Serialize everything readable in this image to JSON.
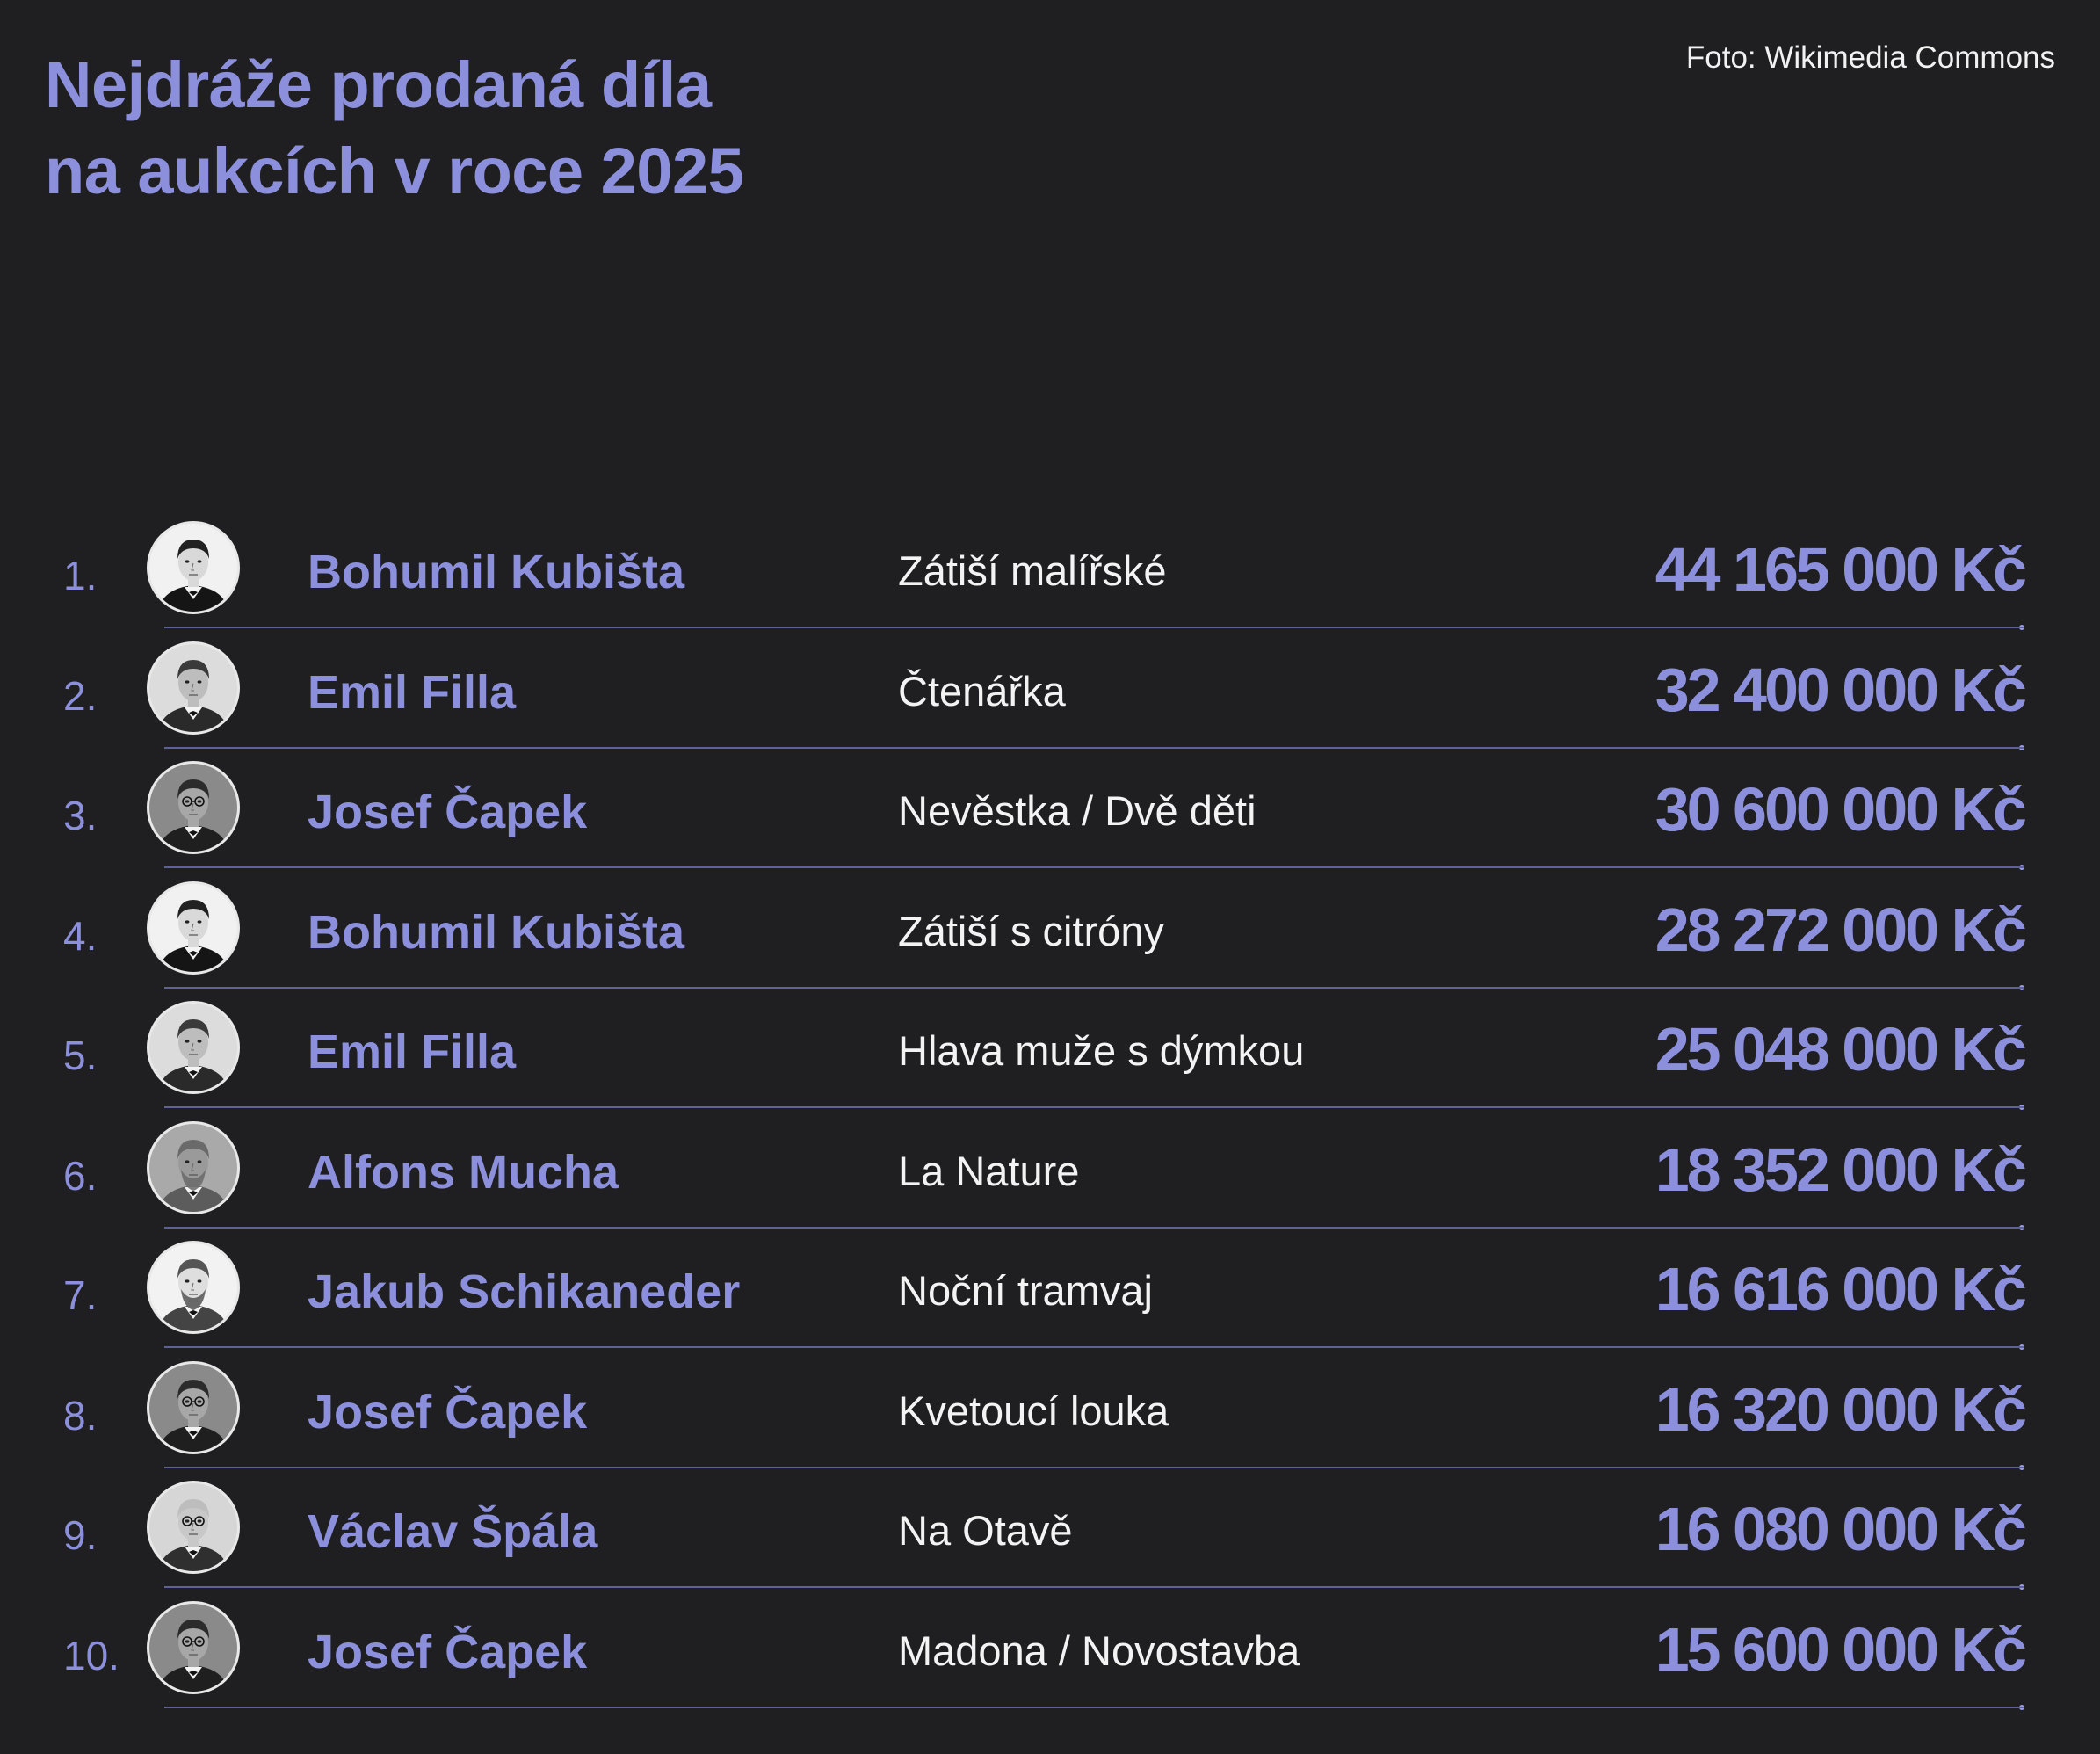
{
  "title_lines": [
    "Nejdráže prodaná díla",
    "na aukcích v roce 2025"
  ],
  "credit": "Foto: Wikimedia Commons",
  "rows": [
    {
      "rank": "1.",
      "artist": "Bohumil Kubišta",
      "work": "Zátiší malířské",
      "price": "44 165 000 Kč",
      "portrait": "bohumil-kubista-portrait"
    },
    {
      "rank": "2.",
      "artist": "Emil Filla",
      "work": "Čtenářka",
      "price": "32 400 000 Kč",
      "portrait": "emil-filla-portrait"
    },
    {
      "rank": "3.",
      "artist": "Josef Čapek",
      "work": "Nevěstka / Dvě děti",
      "price": "30 600 000 Kč",
      "portrait": "josef-capek-portrait"
    },
    {
      "rank": "4.",
      "artist": "Bohumil Kubišta",
      "work": "Zátiší s citróny",
      "price": "28 272 000 Kč",
      "portrait": "bohumil-kubista-portrait"
    },
    {
      "rank": "5.",
      "artist": "Emil Filla",
      "work": "Hlava muže s dýmkou",
      "price": "25 048 000 Kč",
      "portrait": "emil-filla-portrait"
    },
    {
      "rank": "6.",
      "artist": "Alfons Mucha",
      "work": "La Nature",
      "price": "18 352 000 Kč",
      "portrait": "alfons-mucha-portrait"
    },
    {
      "rank": "7.",
      "artist": "Jakub Schikaneder",
      "work": "Noční tramvaj",
      "price": "16 616 000 Kč",
      "portrait": "jakub-schikaneder-portrait"
    },
    {
      "rank": "8.",
      "artist": "Josef Čapek",
      "work": "Kvetoucí louka",
      "price": "16 320 000 Kč",
      "portrait": "josef-capek-portrait"
    },
    {
      "rank": "9.",
      "artist": "Václav Špála",
      "work": "Na Otavě",
      "price": "16 080 000 Kč",
      "portrait": "vaclav-spala-portrait"
    },
    {
      "rank": "10.",
      "artist": "Josef Čapek",
      "work": "Madona / Novostavba",
      "price": "15 600 000 Kč",
      "portrait": "josef-capek-portrait"
    }
  ]
}
